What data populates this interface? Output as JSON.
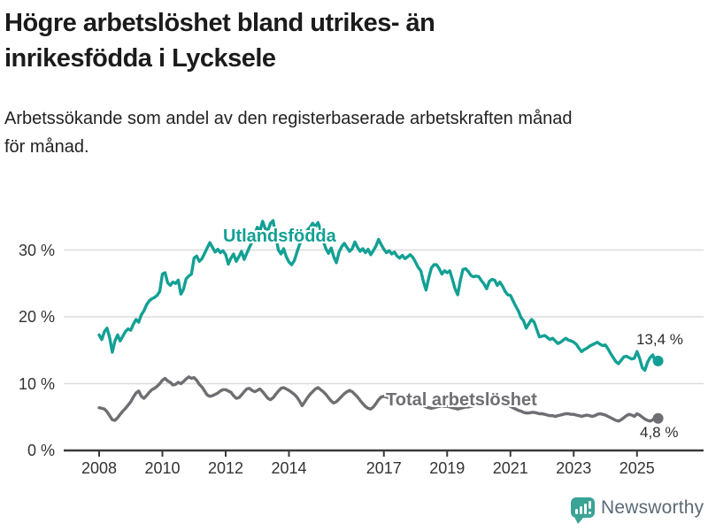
{
  "header": {
    "title_line1": "Högre arbetslöshet bland utrikes- än",
    "title_line2": "inrikesfödda i Lycksele",
    "subtitle_line1": "Arbetssökande som andel av den registerbaserade arbetskraften månad",
    "subtitle_line2": "för månad."
  },
  "footer": {
    "brand": "Newsworthy"
  },
  "colors": {
    "foreign_born_line": "#12a094",
    "total_line": "#6e6e73",
    "gridline": "#dcdcdc",
    "axis": "#3a3a3a",
    "logo_teal": "#3ba395"
  },
  "chart_data": {
    "type": "line",
    "title": "Högre arbetslöshet bland utrikes- än inrikesfödda i Lycksele",
    "subtitle": "Arbetssökande som andel av den registerbaserade arbetskraften månad för månad.",
    "unit": "percent",
    "x_start_year": 2008,
    "points_per_year": 12,
    "x_end": "2025-09",
    "ylim": [
      0,
      35
    ],
    "grid": "horizontal",
    "legend_position": "inline-labels",
    "x_ticks": [
      {
        "year": 2008,
        "label": "2008"
      },
      {
        "year": 2010,
        "label": "2010"
      },
      {
        "year": 2012,
        "label": "2012"
      },
      {
        "year": 2014,
        "label": "2014"
      },
      {
        "year": 2017,
        "label": "2017"
      },
      {
        "year": 2019,
        "label": "2019"
      },
      {
        "year": 2021,
        "label": "2021"
      },
      {
        "year": 2023,
        "label": "2023"
      },
      {
        "year": 2025,
        "label": "2025"
      }
    ],
    "y_ticks": [
      {
        "value": 0,
        "label": "0 %"
      },
      {
        "value": 10,
        "label": "10 %"
      },
      {
        "value": 20,
        "label": "20 %"
      },
      {
        "value": 30,
        "label": "30 %"
      }
    ],
    "series": [
      {
        "name": "Utlandsfödda",
        "color": "#12a094",
        "end_label": "13,4 %",
        "end_value": 13.4,
        "values": [
          17.3,
          16.6,
          17.8,
          18.3,
          16.9,
          14.7,
          16.4,
          17.3,
          16.4,
          17.1,
          17.8,
          18.2,
          18.0,
          18.9,
          19.6,
          19.2,
          20.3,
          20.9,
          21.8,
          22.4,
          22.7,
          22.9,
          23.2,
          23.8,
          26.4,
          26.6,
          25.1,
          24.7,
          25.2,
          25.0,
          25.5,
          23.4,
          24.1,
          25.7,
          26.1,
          26.4,
          28.8,
          29.1,
          28.3,
          28.7,
          29.5,
          30.3,
          31.1,
          30.4,
          29.7,
          30.1,
          29.6,
          29.9,
          29.3,
          27.9,
          28.8,
          29.4,
          28.3,
          29.0,
          29.8,
          28.6,
          29.5,
          30.4,
          31.2,
          32.4,
          33.4,
          32.8,
          34.3,
          33.2,
          32.9,
          34.0,
          34.4,
          32.0,
          30.0,
          29.4,
          30.2,
          29.0,
          28.2,
          27.8,
          28.4,
          29.6,
          30.8,
          31.6,
          32.4,
          33.0,
          33.4,
          34.0,
          33.5,
          34.1,
          33.0,
          31.4,
          30.2,
          29.5,
          30.3,
          29.0,
          28.1,
          29.7,
          30.5,
          31.0,
          30.4,
          29.8,
          30.2,
          31.2,
          30.4,
          29.8,
          30.2,
          29.6,
          30.1,
          29.3,
          29.9,
          30.6,
          31.6,
          30.8,
          30.1,
          29.6,
          29.9,
          29.4,
          29.7,
          29.1,
          28.8,
          29.2,
          28.7,
          29.0,
          29.3,
          28.9,
          28.2,
          27.4,
          26.9,
          25.3,
          24.0,
          25.8,
          27.3,
          27.8,
          27.8,
          27.2,
          26.4,
          26.9,
          26.6,
          26.9,
          25.6,
          24.2,
          23.3,
          25.4,
          27.1,
          27.2,
          26.8,
          26.2,
          26.0,
          26.1,
          26.0,
          25.4,
          24.9,
          24.2,
          25.3,
          25.6,
          25.5,
          24.7,
          25.2,
          24.6,
          23.8,
          23.3,
          23.2,
          22.4,
          21.6,
          20.9,
          19.9,
          19.4,
          18.3,
          19.0,
          19.6,
          19.2,
          18.1,
          17.0,
          17.1,
          17.2,
          16.9,
          16.6,
          16.8,
          16.4,
          16.0,
          16.2,
          16.5,
          16.8,
          16.5,
          16.4,
          16.2,
          15.9,
          15.3,
          14.8,
          15.1,
          15.3,
          15.6,
          15.8,
          16.0,
          16.2,
          15.9,
          15.7,
          15.8,
          15.2,
          14.5,
          13.9,
          13.3,
          13.0,
          13.5,
          14.0,
          14.1,
          13.9,
          13.7,
          13.8,
          14.8,
          13.8,
          12.4,
          12.0,
          13.2,
          13.9,
          14.3,
          13.2,
          13.4
        ]
      },
      {
        "name": "Total arbetslöshet",
        "color": "#6e6e73",
        "end_label": "4,8 %",
        "end_value": 4.8,
        "values": [
          6.4,
          6.3,
          6.2,
          5.8,
          5.2,
          4.6,
          4.5,
          4.9,
          5.4,
          5.9,
          6.3,
          6.8,
          7.3,
          8.0,
          8.6,
          8.9,
          8.1,
          7.8,
          8.2,
          8.7,
          9.1,
          9.3,
          9.6,
          10.0,
          10.5,
          10.8,
          10.4,
          10.2,
          9.8,
          9.9,
          10.2,
          10.0,
          10.3,
          10.7,
          11.0,
          10.8,
          10.9,
          10.5,
          9.9,
          9.5,
          8.9,
          8.3,
          8.1,
          8.2,
          8.4,
          8.6,
          8.9,
          9.1,
          9.1,
          8.9,
          8.7,
          8.2,
          7.8,
          7.9,
          8.3,
          8.8,
          9.2,
          9.3,
          9.0,
          8.8,
          9.0,
          9.2,
          8.8,
          8.3,
          7.8,
          7.6,
          7.9,
          8.4,
          8.9,
          9.3,
          9.4,
          9.2,
          9.0,
          8.7,
          8.4,
          8.0,
          7.4,
          6.7,
          7.3,
          7.9,
          8.4,
          8.8,
          9.2,
          9.4,
          9.1,
          8.8,
          8.4,
          7.9,
          7.4,
          7.1,
          7.3,
          7.7,
          8.1,
          8.5,
          8.8,
          9.0,
          8.8,
          8.4,
          8.0,
          7.5,
          7.0,
          6.6,
          6.3,
          6.2,
          6.5,
          7.0,
          7.6,
          8.0,
          8.1,
          8.0,
          7.8,
          7.5,
          7.2,
          7.0,
          6.8,
          6.9,
          7.1,
          7.3,
          7.4,
          7.3,
          7.2,
          7.1,
          6.9,
          6.7,
          6.5,
          6.4,
          6.3,
          6.4,
          6.5,
          6.6,
          6.7,
          6.6,
          6.6,
          6.5,
          6.4,
          6.3,
          6.2,
          6.3,
          6.4,
          6.5,
          6.5,
          6.6,
          6.7,
          6.8,
          6.8,
          6.7,
          7.0,
          7.4,
          7.6,
          7.7,
          7.6,
          7.4,
          7.2,
          7.0,
          6.9,
          6.8,
          6.6,
          6.4,
          6.2,
          6.0,
          5.9,
          5.7,
          5.6,
          5.6,
          5.7,
          5.7,
          5.6,
          5.5,
          5.5,
          5.4,
          5.3,
          5.2,
          5.2,
          5.1,
          5.2,
          5.3,
          5.4,
          5.5,
          5.5,
          5.4,
          5.4,
          5.3,
          5.2,
          5.1,
          5.2,
          5.3,
          5.2,
          5.1,
          5.2,
          5.4,
          5.5,
          5.4,
          5.3,
          5.1,
          4.9,
          4.7,
          4.5,
          4.4,
          4.6,
          4.9,
          5.2,
          5.4,
          5.3,
          5.1,
          5.5,
          5.3,
          5.0,
          4.7,
          4.5,
          4.4,
          4.6,
          4.9,
          4.8
        ]
      }
    ]
  }
}
